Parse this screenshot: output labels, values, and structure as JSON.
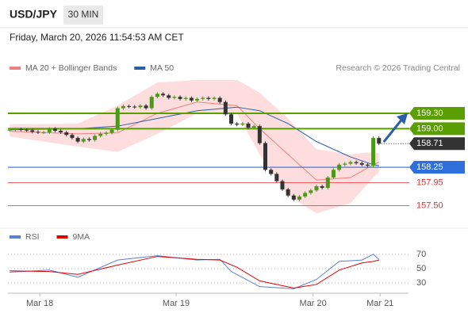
{
  "header": {
    "symbol": "USD/JPY",
    "interval": "30 MIN",
    "timestamp": "Friday, March 20, 2026 11:54:53 AM CET"
  },
  "chart_data": [
    {
      "type": "candlestick",
      "credit": "Research © 2026 Trading Central",
      "up_color": "#4a9a17",
      "down_color": "#333333",
      "xlim": [
        -0.3,
        69.5
      ],
      "ylim": [
        157.14,
        160.04
      ],
      "close": [
        158.98,
        158.99,
        158.98,
        158.97,
        158.94,
        158.93,
        158.93,
        159.0,
        158.96,
        158.93,
        158.88,
        158.82,
        158.75,
        158.8,
        158.78,
        158.86,
        158.9,
        158.92,
        158.98,
        159.4,
        159.44,
        159.43,
        159.42,
        159.45,
        159.4,
        159.62,
        159.68,
        159.65,
        159.6,
        159.62,
        159.58,
        159.6,
        159.55,
        159.58,
        159.6,
        159.58,
        159.6,
        159.52,
        159.28,
        159.1,
        159.08,
        159.1,
        159.02,
        159.05,
        158.72,
        158.2,
        158.12,
        157.98,
        157.82,
        157.7,
        157.62,
        157.68,
        157.75,
        157.8,
        157.88,
        157.85,
        158.05,
        158.2,
        158.3,
        158.32,
        158.35,
        158.33,
        158.3,
        158.28,
        158.82,
        158.71
      ],
      "series": [
        {
          "name": "MA 20 + Bollinger Bands",
          "color": "#f08080",
          "band_color": "#fdd5d5",
          "x": [
            0,
            12,
            19,
            26,
            33,
            40,
            44,
            49,
            54,
            60,
            64,
            65
          ],
          "values": [
            158.95,
            158.9,
            158.92,
            159.3,
            159.52,
            159.45,
            159.0,
            158.5,
            158.0,
            158.05,
            158.3,
            158.35
          ],
          "upper": [
            159.08,
            159.1,
            159.45,
            159.9,
            159.95,
            159.95,
            159.7,
            159.2,
            158.6,
            158.5,
            158.55,
            158.52
          ],
          "lower": [
            158.85,
            158.65,
            158.55,
            158.9,
            159.3,
            159.3,
            158.5,
            157.7,
            157.35,
            157.55,
            158.05,
            158.15
          ]
        },
        {
          "name": "MA 50",
          "color": "#2a5fa8",
          "x": [
            0,
            12,
            19,
            26,
            33,
            40,
            44,
            49,
            54,
            60,
            64,
            65
          ],
          "values": [
            158.98,
            159.0,
            159.05,
            159.2,
            159.35,
            159.42,
            159.35,
            159.1,
            158.75,
            158.45,
            158.3,
            158.28
          ]
        }
      ],
      "levels": [
        {
          "value": 159.3,
          "label": "159.30",
          "color": "#5a9e00",
          "style": "box"
        },
        {
          "value": 159,
          "label": "159.00",
          "color": "#5a9e00",
          "style": "box"
        },
        {
          "value": 158.71,
          "label": "158.71",
          "color": "#333333",
          "style": "current"
        },
        {
          "value": 158.25,
          "label": "158.25",
          "color": "#2f6fdc",
          "style": "box"
        },
        {
          "value": 157.95,
          "label": "157.95",
          "color": "#e03030",
          "style": "text"
        },
        {
          "value": 157.5,
          "label": "157.50",
          "color": "#e03030",
          "style": "text"
        }
      ]
    },
    {
      "type": "line",
      "xlim": [
        -0.3,
        69.5
      ],
      "ylim": [
        18,
        93
      ],
      "yticks": [
        70,
        50,
        30
      ],
      "xticks": [
        {
          "value": 5.3,
          "label": "Mar 18"
        },
        {
          "value": 29.3,
          "label": "Mar 19"
        },
        {
          "value": 53.4,
          "label": "Mar 20"
        },
        {
          "value": 65.2,
          "label": "Mar 21"
        }
      ],
      "series": [
        {
          "name": "RSI",
          "color": "#5b7fd8",
          "x": [
            0,
            7,
            12,
            19,
            26,
            33,
            37,
            39,
            44,
            50,
            54,
            58,
            62,
            64,
            65
          ],
          "values": [
            45,
            48,
            38,
            62,
            68,
            62,
            63,
            46,
            25,
            22,
            35,
            60,
            62,
            70,
            63
          ]
        },
        {
          "name": "9MA",
          "color": "#e00000",
          "x": [
            0,
            7,
            12,
            19,
            26,
            33,
            37,
            40,
            44,
            50,
            54,
            58,
            62,
            64,
            65
          ],
          "values": [
            47,
            46,
            42,
            55,
            67,
            63,
            62,
            52,
            33,
            23,
            28,
            48,
            58,
            60,
            62
          ]
        }
      ]
    }
  ]
}
